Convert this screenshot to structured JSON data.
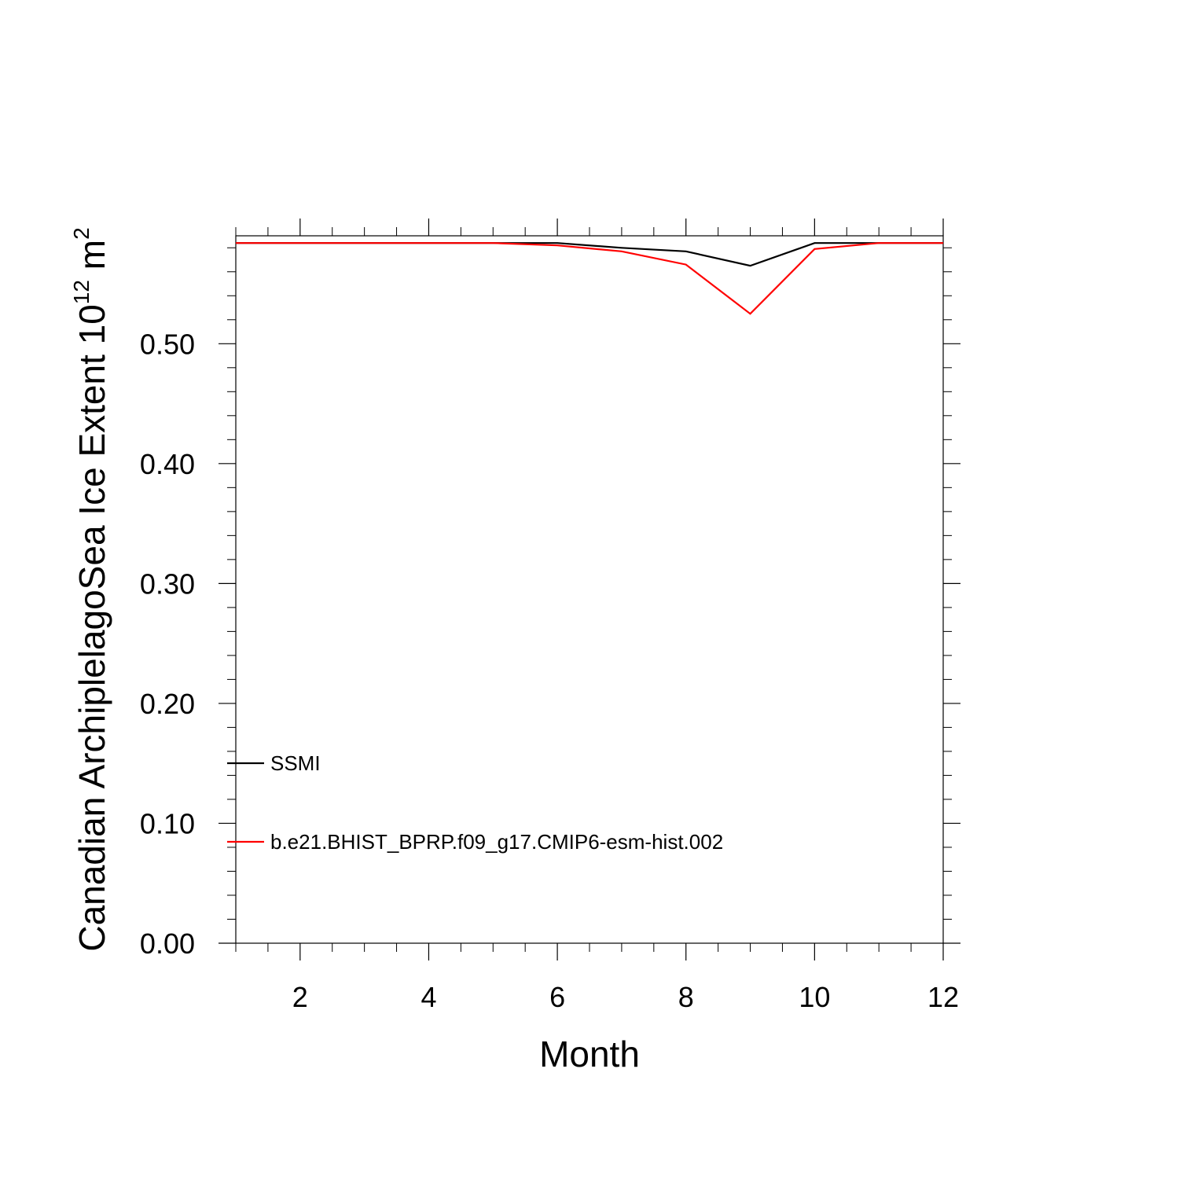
{
  "chart_data": {
    "type": "line",
    "xlabel": "Month",
    "ylabel": "Canadian ArchiplelagoSea Ice Extent 10",
    "ylabel_sup": "12",
    "ylabel_unit": " m",
    "ylabel_unit_sup": "2",
    "xlim": [
      1,
      12
    ],
    "ylim": [
      0,
      0.59
    ],
    "x_ticks": [
      2,
      4,
      6,
      8,
      10,
      12
    ],
    "x_tick_labels": [
      "2",
      "4",
      "6",
      "8",
      "10",
      "12"
    ],
    "y_ticks": [
      0,
      0.1,
      0.2,
      0.3,
      0.4,
      0.5
    ],
    "y_tick_labels": [
      "0.00",
      "0.10",
      "0.20",
      "0.30",
      "0.40",
      "0.50"
    ],
    "x": [
      1,
      2,
      3,
      4,
      5,
      6,
      7,
      8,
      9,
      10,
      11,
      12
    ],
    "series": [
      {
        "name": "SSMI",
        "color": "#000000",
        "values": [
          0.584,
          0.584,
          0.584,
          0.584,
          0.584,
          0.584,
          0.58,
          0.577,
          0.565,
          0.584,
          0.584,
          0.584
        ]
      },
      {
        "name": "b.e21.BHIST_BPRP.f09_g17.CMIP6-esm-hist.002",
        "color": "#ff0000",
        "values": [
          0.584,
          0.584,
          0.584,
          0.584,
          0.584,
          0.582,
          0.577,
          0.566,
          0.525,
          0.579,
          0.584,
          0.584
        ]
      }
    ],
    "grid": false,
    "legend_position": "lower-left, inside plot"
  }
}
